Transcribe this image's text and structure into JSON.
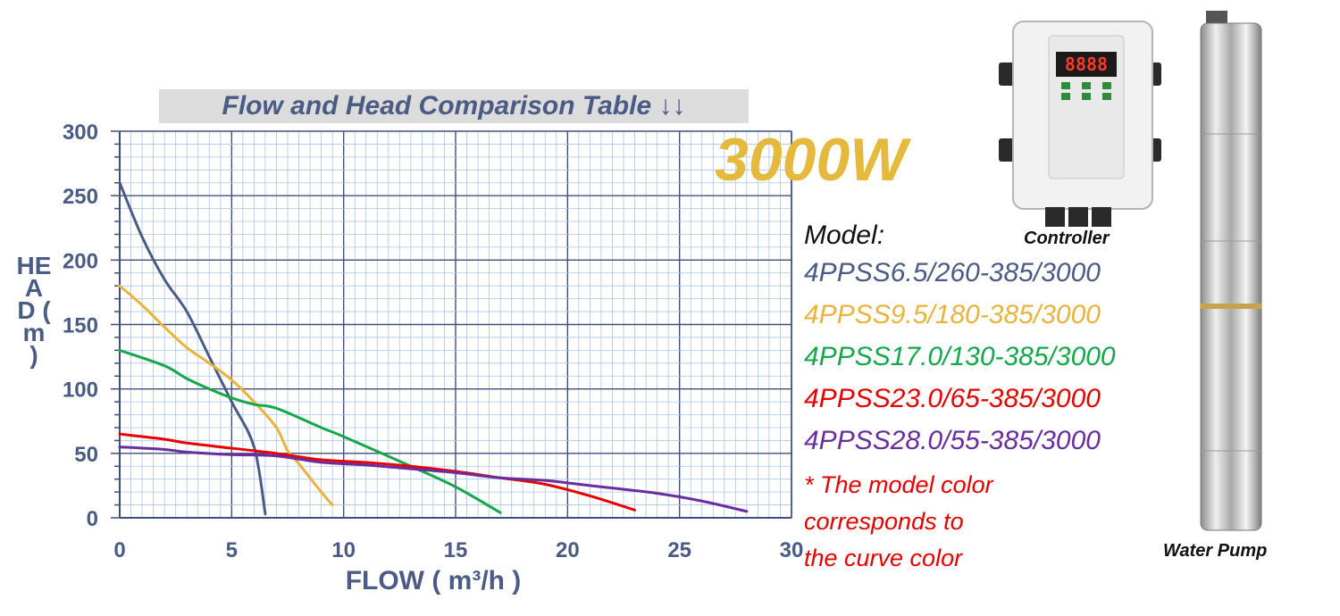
{
  "chart_data": {
    "type": "line",
    "title": "Flow and Head Comparison Table ↓↓",
    "xlabel": "FLOW ( m³/h )",
    "ylabel": "HEAD ( m )",
    "xlim": [
      0,
      30
    ],
    "ylim": [
      0,
      300
    ],
    "xticks": [
      0,
      5,
      10,
      15,
      20,
      25,
      30
    ],
    "yticks": [
      0,
      50,
      100,
      150,
      200,
      250,
      300
    ],
    "grid": true,
    "series": [
      {
        "name": "4PPSS6.5/260-385/3000",
        "color": "#4a5b85",
        "x": [
          0,
          1,
          2,
          3,
          4,
          5,
          6,
          6.5
        ],
        "y": [
          260,
          218,
          185,
          160,
          125,
          90,
          55,
          3
        ]
      },
      {
        "name": "4PPSS9.5/180-385/3000",
        "color": "#e8b43c",
        "x": [
          0,
          1,
          2,
          3,
          4,
          5,
          6,
          7,
          7.5,
          8,
          9,
          9.5
        ],
        "y": [
          180,
          165,
          148,
          132,
          120,
          107,
          90,
          70,
          52,
          42,
          20,
          10
        ]
      },
      {
        "name": "4PPSS17.0/130-385/3000",
        "color": "#13a84a",
        "x": [
          0,
          2,
          3,
          4,
          5,
          6,
          7,
          9,
          10,
          13,
          15,
          17
        ],
        "y": [
          130,
          118,
          108,
          100,
          93,
          88,
          85,
          70,
          63,
          40,
          24,
          4
        ]
      },
      {
        "name": "4PPSS23.0/65-385/3000",
        "color": "#e60000",
        "x": [
          0,
          2,
          3,
          5,
          7,
          9,
          11,
          13,
          15,
          17,
          19,
          21,
          23
        ],
        "y": [
          65,
          61,
          58,
          54,
          50,
          45,
          43,
          40,
          36,
          31,
          26,
          17,
          6
        ]
      },
      {
        "name": "4PPSS28.0/55-385/3000",
        "color": "#6a2da0",
        "x": [
          0,
          2,
          3,
          5,
          7,
          9,
          11,
          13,
          15,
          17,
          19,
          21,
          24,
          26,
          28
        ],
        "y": [
          55,
          53,
          51,
          49,
          48,
          43,
          41,
          38,
          35,
          31,
          29,
          25,
          19,
          13,
          5
        ]
      }
    ]
  },
  "power_label": "3000W",
  "model_heading": "Model:",
  "note": "* The model color\n  corresponds to\n  the curve color",
  "controller": {
    "caption": "Controller",
    "display": "8888"
  },
  "pump_caption": "Water Pump"
}
